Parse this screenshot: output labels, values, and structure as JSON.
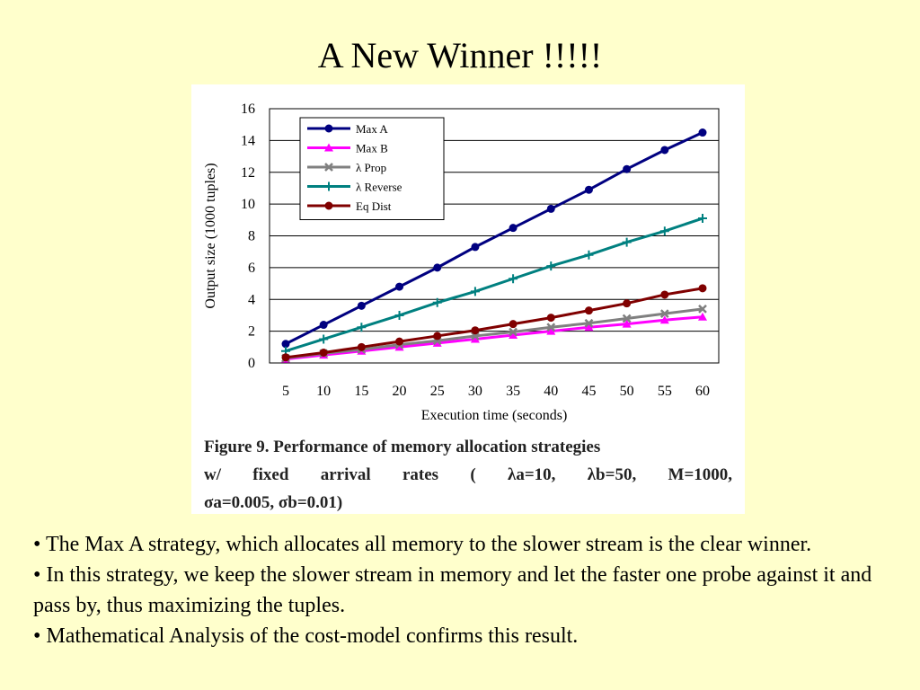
{
  "slide": {
    "title": "A New Winner !!!!!"
  },
  "caption": {
    "line1": "Figure 9. Performance of memory allocation strategies",
    "line2_prefix": "w/ fixed arrival rates (",
    "lambda_a": "λa=10,",
    "lambda_b": "λb=50,",
    "m": "M=1000,",
    "line3": "σa=0.005, σb=0.01)"
  },
  "bullets": [
    "• The Max A strategy, which allocates all memory to the slower stream is the clear winner.",
    "• In this strategy, we keep the slower stream in memory and let the faster one probe against it and pass by, thus maximizing the tuples.",
    "• Mathematical Analysis of the cost-model confirms this result."
  ],
  "chart_data": {
    "type": "line",
    "xlabel": "Execution time (seconds)",
    "ylabel": "Output size (1000 tuples)",
    "x": [
      5,
      10,
      15,
      20,
      25,
      30,
      35,
      40,
      45,
      50,
      55,
      60
    ],
    "ylim": [
      0,
      16
    ],
    "yticks": [
      0,
      2,
      4,
      6,
      8,
      10,
      12,
      14,
      16
    ],
    "grid": true,
    "legend_position": "top-left",
    "series": [
      {
        "name": "Max A",
        "color": "#000080",
        "marker": "circle",
        "values": [
          1.2,
          2.4,
          3.6,
          4.8,
          6.0,
          7.3,
          8.5,
          9.7,
          10.9,
          12.2,
          13.4,
          14.5
        ]
      },
      {
        "name": "Max B",
        "color": "#FF00FF",
        "marker": "triangle",
        "values": [
          0.25,
          0.5,
          0.75,
          1.0,
          1.25,
          1.5,
          1.75,
          2.0,
          2.25,
          2.45,
          2.7,
          2.9
        ]
      },
      {
        "name": "λ Prop",
        "color": "#808080",
        "marker": "x",
        "values": [
          0.3,
          0.6,
          0.85,
          1.15,
          1.4,
          1.7,
          1.95,
          2.25,
          2.5,
          2.8,
          3.1,
          3.4
        ]
      },
      {
        "name": "λ Reverse",
        "color": "#008080",
        "marker": "plus",
        "values": [
          0.75,
          1.5,
          2.25,
          3.0,
          3.8,
          4.5,
          5.3,
          6.1,
          6.8,
          7.6,
          8.3,
          9.1
        ]
      },
      {
        "name": "Eq Dist",
        "color": "#800000",
        "marker": "circle",
        "values": [
          0.35,
          0.65,
          1.0,
          1.35,
          1.7,
          2.05,
          2.45,
          2.85,
          3.3,
          3.75,
          4.3,
          4.7
        ]
      }
    ]
  }
}
